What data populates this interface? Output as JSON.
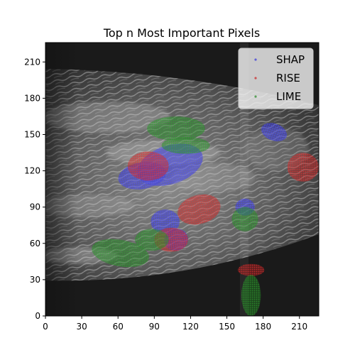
{
  "chart_data": {
    "type": "scatter",
    "title": "Top n Most Important Pixels",
    "xlabel": "",
    "ylabel": "",
    "xlim": [
      0,
      226
    ],
    "ylim": [
      0,
      226
    ],
    "xticks": [
      0,
      30,
      60,
      90,
      120,
      150,
      180,
      210
    ],
    "yticks": [
      0,
      30,
      60,
      90,
      120,
      150,
      180,
      210
    ],
    "background": "grayscale ultrasound image",
    "grid": false,
    "legend_position": "top-right",
    "series": [
      {
        "name": "SHAP",
        "color": "#3333dd",
        "regions": [
          {
            "cx": 103,
            "cy": 125,
            "rx": 28,
            "ry": 16,
            "rot": -18
          },
          {
            "cx": 80,
            "cy": 116,
            "rx": 20,
            "ry": 11,
            "rot": -10
          },
          {
            "cx": 99,
            "cy": 78,
            "rx": 12,
            "ry": 10,
            "rot": 0
          },
          {
            "cx": 108,
            "cy": 63,
            "rx": 10,
            "ry": 9,
            "rot": -20
          },
          {
            "cx": 165,
            "cy": 90,
            "rx": 8,
            "ry": 7,
            "rot": 0
          },
          {
            "cx": 189,
            "cy": 152,
            "rx": 11,
            "ry": 7,
            "rot": 20
          }
        ]
      },
      {
        "name": "RISE",
        "color": "#cc2222",
        "regions": [
          {
            "cx": 85,
            "cy": 124,
            "rx": 17,
            "ry": 12,
            "rot": 0
          },
          {
            "cx": 127,
            "cy": 88,
            "rx": 18,
            "ry": 12,
            "rot": -15
          },
          {
            "cx": 104,
            "cy": 63,
            "rx": 14,
            "ry": 10,
            "rot": 0
          },
          {
            "cx": 213,
            "cy": 123,
            "rx": 13,
            "ry": 12,
            "rot": 0
          },
          {
            "cx": 170,
            "cy": 38,
            "rx": 11,
            "ry": 5,
            "rot": 0
          }
        ]
      },
      {
        "name": "LIME",
        "color": "#228822",
        "regions": [
          {
            "cx": 108,
            "cy": 155,
            "rx": 24,
            "ry": 10,
            "rot": 0
          },
          {
            "cx": 116,
            "cy": 141,
            "rx": 20,
            "ry": 7,
            "rot": 0
          },
          {
            "cx": 62,
            "cy": 52,
            "rx": 24,
            "ry": 11,
            "rot": 10
          },
          {
            "cx": 88,
            "cy": 63,
            "rx": 14,
            "ry": 9,
            "rot": 0
          },
          {
            "cx": 165,
            "cy": 80,
            "rx": 11,
            "ry": 10,
            "rot": 0
          },
          {
            "cx": 170,
            "cy": 17,
            "rx": 8,
            "ry": 17,
            "rot": 0
          }
        ]
      }
    ]
  }
}
